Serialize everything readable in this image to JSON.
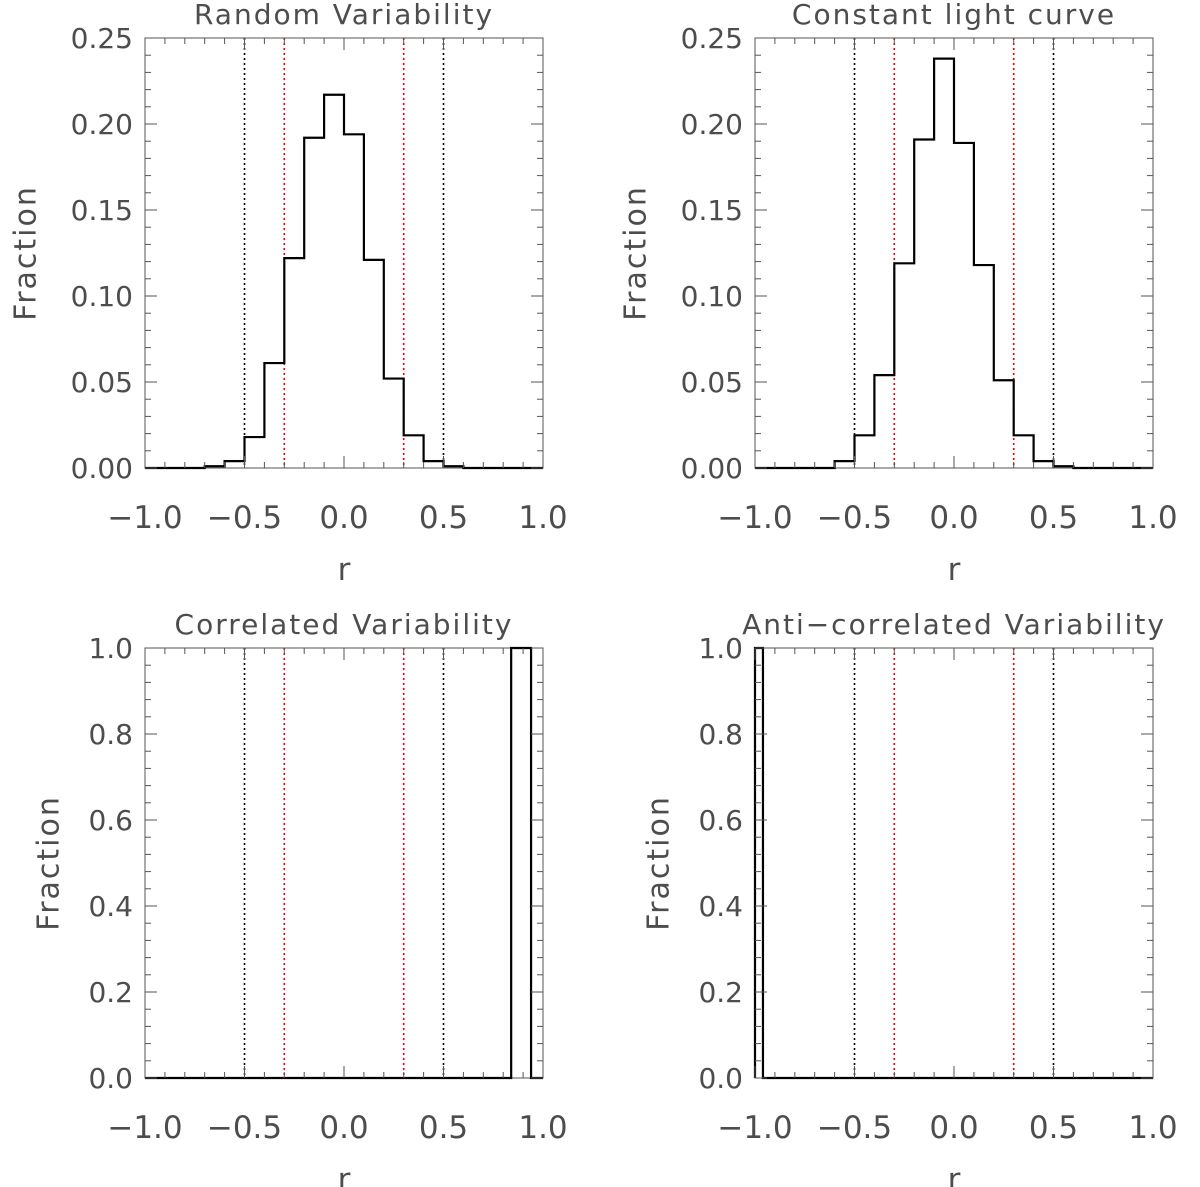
{
  "colors": {
    "axis": "#555555",
    "histogram": "#000000",
    "text": "#4d4d4d",
    "dotted_black": "#000000",
    "dotted_red": "#e8000b"
  },
  "chart_data": [
    {
      "type": "histogram",
      "title": "Random Variability",
      "xlabel": "r",
      "ylabel": "Fraction",
      "xlim": [
        -1.0,
        1.0
      ],
      "ylim": [
        0.0,
        0.25
      ],
      "xticks": [
        -1.0,
        -0.5,
        0.0,
        0.5,
        1.0
      ],
      "xtick_labels": [
        "−1.0",
        "−0.5",
        "0.0",
        "0.5",
        "1.0"
      ],
      "yticks": [
        0.0,
        0.05,
        0.1,
        0.15,
        0.2,
        0.25
      ],
      "ytick_labels": [
        "0.00",
        "0.05",
        "0.10",
        "0.15",
        "0.20",
        "0.25"
      ],
      "bin_edges": [
        -1.0,
        -0.9,
        -0.8,
        -0.7,
        -0.6,
        -0.5,
        -0.4,
        -0.3,
        -0.2,
        -0.1,
        0.0,
        0.1,
        0.2,
        0.3,
        0.4,
        0.5,
        0.6,
        0.7,
        0.8,
        0.9,
        1.0
      ],
      "values": [
        0.0,
        0.0,
        0.0,
        0.001,
        0.004,
        0.018,
        0.061,
        0.122,
        0.192,
        0.217,
        0.194,
        0.121,
        0.052,
        0.019,
        0.004,
        0.001,
        0.0,
        0.0,
        0.0,
        0.0
      ],
      "vlines_black": [
        -0.5,
        0.5
      ],
      "vlines_red": [
        -0.3,
        0.3
      ]
    },
    {
      "type": "histogram",
      "title": "Constant light curve",
      "xlabel": "r",
      "ylabel": "Fraction",
      "xlim": [
        -1.0,
        1.0
      ],
      "ylim": [
        0.0,
        0.25
      ],
      "xticks": [
        -1.0,
        -0.5,
        0.0,
        0.5,
        1.0
      ],
      "xtick_labels": [
        "−1.0",
        "−0.5",
        "0.0",
        "0.5",
        "1.0"
      ],
      "yticks": [
        0.0,
        0.05,
        0.1,
        0.15,
        0.2,
        0.25
      ],
      "ytick_labels": [
        "0.00",
        "0.05",
        "0.10",
        "0.15",
        "0.20",
        "0.25"
      ],
      "bin_edges": [
        -1.0,
        -0.9,
        -0.8,
        -0.7,
        -0.6,
        -0.5,
        -0.4,
        -0.3,
        -0.2,
        -0.1,
        0.0,
        0.1,
        0.2,
        0.3,
        0.4,
        0.5,
        0.6,
        0.7,
        0.8,
        0.9,
        1.0
      ],
      "values": [
        0.0,
        0.0,
        0.0,
        0.0,
        0.004,
        0.019,
        0.054,
        0.119,
        0.191,
        0.238,
        0.189,
        0.118,
        0.051,
        0.019,
        0.004,
        0.001,
        0.0,
        0.0,
        0.0,
        0.0
      ],
      "vlines_black": [
        -0.5,
        0.5
      ],
      "vlines_red": [
        -0.3,
        0.3
      ]
    },
    {
      "type": "histogram",
      "title": "Correlated Variability",
      "xlabel": "r",
      "ylabel": "Fraction",
      "xlim": [
        -1.0,
        1.0
      ],
      "ylim": [
        0.0,
        1.0
      ],
      "xticks": [
        -1.0,
        -0.5,
        0.0,
        0.5,
        1.0
      ],
      "xtick_labels": [
        "−1.0",
        "−0.5",
        "0.0",
        "0.5",
        "1.0"
      ],
      "yticks": [
        0.0,
        0.2,
        0.4,
        0.6,
        0.8,
        1.0
      ],
      "ytick_labels": [
        "0.0",
        "0.2",
        "0.4",
        "0.6",
        "0.8",
        "1.0"
      ],
      "bin_edges": [
        -1.0,
        0.84,
        0.94,
        1.0
      ],
      "values": [
        0.0,
        1.0,
        0.0
      ],
      "vlines_black": [
        -0.5,
        0.5
      ],
      "vlines_red": [
        -0.3,
        0.3
      ]
    },
    {
      "type": "histogram",
      "title": "Anti−correlated Variability",
      "xlabel": "r",
      "ylabel": "Fraction",
      "xlim": [
        -1.0,
        1.0
      ],
      "ylim": [
        0.0,
        1.0
      ],
      "xticks": [
        -1.0,
        -0.5,
        0.0,
        0.5,
        1.0
      ],
      "xtick_labels": [
        "−1.0",
        "−0.5",
        "0.0",
        "0.5",
        "1.0"
      ],
      "yticks": [
        0.0,
        0.2,
        0.4,
        0.6,
        0.8,
        1.0
      ],
      "ytick_labels": [
        "0.0",
        "0.2",
        "0.4",
        "0.6",
        "0.8",
        "1.0"
      ],
      "bin_edges": [
        -1.0,
        -0.96,
        1.0
      ],
      "values": [
        1.0,
        0.0
      ],
      "vlines_black": [
        -0.5,
        0.5
      ],
      "vlines_red": [
        -0.3,
        0.3
      ]
    }
  ]
}
